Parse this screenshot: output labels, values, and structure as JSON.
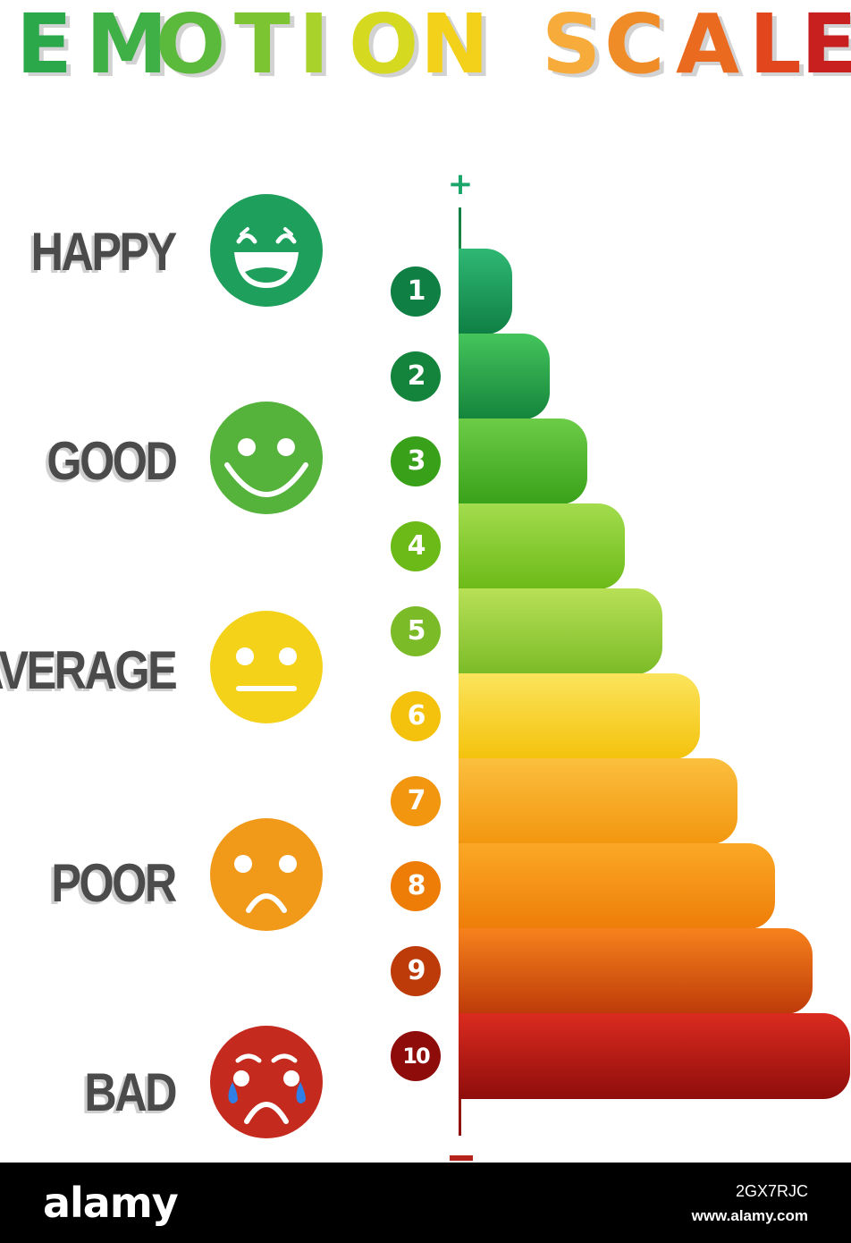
{
  "title": {
    "letters": [
      {
        "char": "E",
        "color": "#2aa84a"
      },
      {
        "char": "M",
        "color": "#3eb046"
      },
      {
        "char": "O",
        "color": "#5bba3c"
      },
      {
        "char": "T",
        "color": "#7cc432"
      },
      {
        "char": "I",
        "color": "#a9d22a"
      },
      {
        "char": "O",
        "color": "#d5da20"
      },
      {
        "char": "N",
        "color": "#f3d11a"
      },
      {
        "char": "S",
        "color": "#f6ab3a"
      },
      {
        "char": "C",
        "color": "#f08c28"
      },
      {
        "char": "A",
        "color": "#ea6b1f"
      },
      {
        "char": "L",
        "color": "#e1461c"
      },
      {
        "char": "E",
        "color": "#c8201e"
      }
    ]
  },
  "emotions": [
    {
      "label": "HAPPY",
      "icon": "grinning-face-icon",
      "color": "#1f9f5c"
    },
    {
      "label": "GOOD",
      "icon": "smiling-face-icon",
      "color": "#55b33c"
    },
    {
      "label": "AVERAGE",
      "icon": "neutral-face-icon",
      "color": "#f4d21a"
    },
    {
      "label": "POOR",
      "icon": "frowning-face-icon",
      "color": "#f19a1a"
    },
    {
      "label": "BAD",
      "icon": "crying-face-icon",
      "color": "#c42a1e"
    }
  ],
  "scale": {
    "top_symbol": "+",
    "bottom_symbol": "−",
    "levels": [
      {
        "number": "1",
        "value": 1,
        "color_top": "#2fb873",
        "color_bottom": "#0f7f44"
      },
      {
        "number": "2",
        "value": 2,
        "color_top": "#45c45b",
        "color_bottom": "#14843c"
      },
      {
        "number": "3",
        "value": 3,
        "color_top": "#6ccc48",
        "color_bottom": "#39a119"
      },
      {
        "number": "4",
        "value": 4,
        "color_top": "#a3dc4e",
        "color_bottom": "#6cba17"
      },
      {
        "number": "5",
        "value": 5,
        "color_top": "#b8e056",
        "color_bottom": "#7bbb28"
      },
      {
        "number": "6",
        "value": 6,
        "color_top": "#fbe45c",
        "color_bottom": "#f4c20c"
      },
      {
        "number": "7",
        "value": 7,
        "color_top": "#fbbf3e",
        "color_bottom": "#f2960f"
      },
      {
        "number": "8",
        "value": 8,
        "color_top": "#fba826",
        "color_bottom": "#ee7d08"
      },
      {
        "number": "9",
        "value": 9,
        "color_top": "#f7821c",
        "color_bottom": "#bd3a09"
      },
      {
        "number": "10",
        "value": 10,
        "color_top": "#db2b1f",
        "color_bottom": "#8e0d0b"
      }
    ]
  },
  "footer": {
    "brand": "alamy",
    "image_id": "2GX7RJC",
    "url": "www.alamy.com"
  }
}
